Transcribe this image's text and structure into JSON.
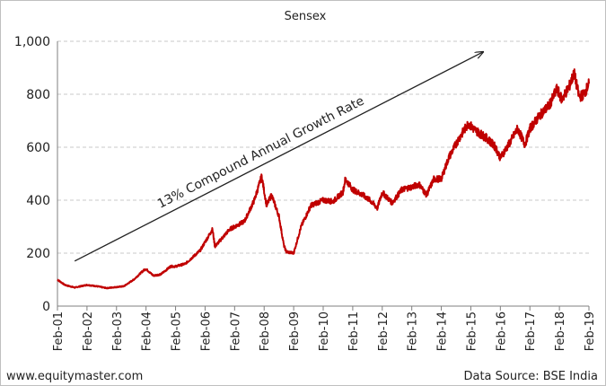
{
  "footer": {
    "site": "www.equitymaster.com",
    "source": "Data Source: BSE India"
  },
  "chart_data": {
    "type": "line",
    "title": "Sensex",
    "xlabel": "",
    "ylabel": "",
    "ylim": [
      0,
      1000
    ],
    "yticks": [
      0,
      200,
      400,
      600,
      800,
      1000
    ],
    "ytick_labels": [
      "0",
      "200",
      "400",
      "600",
      "800",
      "1,000"
    ],
    "grid": true,
    "legend": "none",
    "x_labels": [
      "Feb-01",
      "Feb-02",
      "Feb-03",
      "Feb-04",
      "Feb-05",
      "Feb-06",
      "Feb-07",
      "Feb-08",
      "Feb-09",
      "Feb-10",
      "Feb-11",
      "Feb-12",
      "Feb-13",
      "Feb-14",
      "Feb-15",
      "Feb-16",
      "Feb-17",
      "Feb-18",
      "Feb-19"
    ],
    "series": [
      {
        "color": "#c00000",
        "points": [
          [
            "2001-02",
            100
          ],
          [
            "2001-05",
            80
          ],
          [
            "2001-09",
            70
          ],
          [
            "2002-02",
            80
          ],
          [
            "2002-06",
            75
          ],
          [
            "2002-10",
            68
          ],
          [
            "2003-02",
            72
          ],
          [
            "2003-05",
            75
          ],
          [
            "2003-09",
            100
          ],
          [
            "2004-01",
            135
          ],
          [
            "2004-02",
            140
          ],
          [
            "2004-05",
            115
          ],
          [
            "2004-08",
            120
          ],
          [
            "2004-12",
            150
          ],
          [
            "2005-02",
            150
          ],
          [
            "2005-06",
            160
          ],
          [
            "2005-12",
            210
          ],
          [
            "2006-05",
            290
          ],
          [
            "2006-06",
            225
          ],
          [
            "2006-12",
            290
          ],
          [
            "2007-02",
            300
          ],
          [
            "2007-06",
            320
          ],
          [
            "2007-10",
            400
          ],
          [
            "2008-01",
            490
          ],
          [
            "2008-03",
            380
          ],
          [
            "2008-05",
            420
          ],
          [
            "2008-08",
            340
          ],
          [
            "2008-10",
            230
          ],
          [
            "2008-11",
            205
          ],
          [
            "2009-02",
            200
          ],
          [
            "2009-05",
            300
          ],
          [
            "2009-09",
            380
          ],
          [
            "2010-02",
            400
          ],
          [
            "2010-06",
            395
          ],
          [
            "2010-10",
            430
          ],
          [
            "2010-11",
            480
          ],
          [
            "2011-02",
            440
          ],
          [
            "2011-06",
            420
          ],
          [
            "2011-09",
            400
          ],
          [
            "2011-12",
            370
          ],
          [
            "2012-02",
            430
          ],
          [
            "2012-06",
            390
          ],
          [
            "2012-10",
            440
          ],
          [
            "2013-02",
            450
          ],
          [
            "2013-05",
            460
          ],
          [
            "2013-08",
            420
          ],
          [
            "2013-11",
            480
          ],
          [
            "2014-02",
            480
          ],
          [
            "2014-05",
            560
          ],
          [
            "2014-09",
            630
          ],
          [
            "2015-01",
            690
          ],
          [
            "2015-03",
            670
          ],
          [
            "2015-06",
            650
          ],
          [
            "2015-09",
            630
          ],
          [
            "2015-12",
            600
          ],
          [
            "2016-02",
            560
          ],
          [
            "2016-06",
            620
          ],
          [
            "2016-09",
            670
          ],
          [
            "2016-12",
            610
          ],
          [
            "2017-02",
            670
          ],
          [
            "2017-06",
            720
          ],
          [
            "2017-10",
            760
          ],
          [
            "2018-01",
            820
          ],
          [
            "2018-03",
            780
          ],
          [
            "2018-06",
            830
          ],
          [
            "2018-08",
            880
          ],
          [
            "2018-10",
            790
          ],
          [
            "2018-12",
            800
          ],
          [
            "2019-02",
            840
          ]
        ]
      }
    ],
    "annotations": [
      {
        "text": "13% Compound Annual Growth Rate",
        "arrow_from": [
          "2001-09",
          170
        ],
        "arrow_to": [
          "2015-07",
          960
        ]
      }
    ]
  }
}
